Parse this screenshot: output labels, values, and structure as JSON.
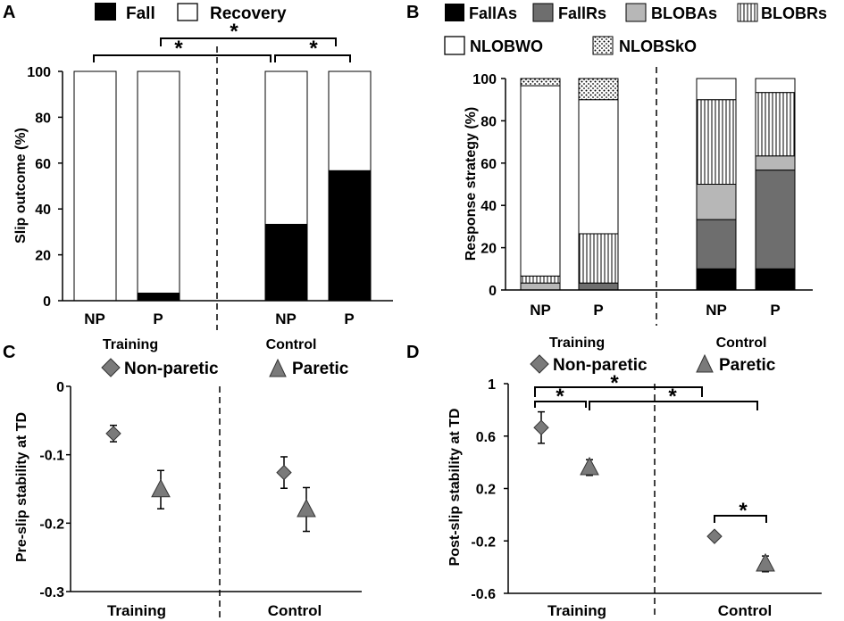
{
  "colors": {
    "fall": "#000000",
    "recovery": "#ffffff",
    "FallAs": "#000000",
    "FallRs": "#6e6e6e",
    "BLOBAs": "#b7b7b7",
    "BLOBRs": "vertical-lines",
    "NLOBWO": "#ffffff",
    "NLOBSkO": "dots",
    "marker": "#7a7a7a"
  },
  "chart_data": [
    {
      "panel": "A",
      "type": "bar",
      "stacked": true,
      "ylabel": "Slip outcome (%)",
      "ylim": [
        0,
        100
      ],
      "yticks": [
        "0",
        "20",
        "40",
        "60",
        "80",
        "100"
      ],
      "legend": [
        "Fall",
        "Recovery"
      ],
      "categories": [
        "NP",
        "P",
        "NP",
        "P"
      ],
      "groups": [
        "Training",
        "Control"
      ],
      "series": [
        {
          "name": "Fall",
          "values": [
            0,
            3.3,
            33.3,
            56.7
          ]
        },
        {
          "name": "Recovery",
          "values": [
            100,
            96.7,
            66.7,
            43.3
          ]
        }
      ],
      "annotations": [
        "*",
        "*",
        "*"
      ]
    },
    {
      "panel": "B",
      "type": "bar",
      "stacked": true,
      "ylabel": "Response strategy (%)",
      "ylim": [
        0,
        100
      ],
      "yticks": [
        "0",
        "20",
        "40",
        "60",
        "80",
        "100"
      ],
      "legend": [
        "FallAs",
        "FallRs",
        "BLOBAs",
        "BLOBRs",
        "NLOBWO",
        "NLOBSkO"
      ],
      "categories": [
        "NP",
        "P",
        "NP",
        "P"
      ],
      "series": [
        {
          "name": "FallAs",
          "values": [
            0,
            0,
            10,
            10
          ]
        },
        {
          "name": "FallRs",
          "values": [
            0,
            3.3,
            23.3,
            46.7
          ]
        },
        {
          "name": "BLOBAs",
          "values": [
            3.3,
            0,
            16.7,
            6.7
          ]
        },
        {
          "name": "BLOBRs",
          "values": [
            3.3,
            23.3,
            40,
            30
          ]
        },
        {
          "name": "NLOBWO",
          "values": [
            90,
            63.4,
            10,
            6.6
          ]
        },
        {
          "name": "NLOBSkO",
          "values": [
            3.4,
            10,
            0,
            0
          ]
        }
      ]
    },
    {
      "panel": "C",
      "type": "scatter",
      "ylabel": "Pre-slip stability at TD",
      "ylim": [
        -0.3,
        0
      ],
      "yticks": [
        "0",
        "-0.1",
        "-0.2",
        "-0.3"
      ],
      "legend": [
        "Non-paretic",
        "Paretic"
      ],
      "groups": [
        "Training",
        "Control"
      ],
      "series": [
        {
          "name": "Non-paretic",
          "values": [
            -0.069,
            -0.126
          ],
          "errors": [
            0.012,
            0.023
          ]
        },
        {
          "name": "Paretic",
          "values": [
            -0.151,
            -0.18
          ],
          "errors": [
            0.028,
            0.032
          ]
        }
      ]
    },
    {
      "panel": "D",
      "type": "scatter",
      "ylabel": "Post-slip stability at TD",
      "ylim": [
        -0.6,
        1
      ],
      "yticks": [
        "1",
        "0.6",
        "0.2",
        "-0.2",
        "-0.6"
      ],
      "legend": [
        "Non-paretic",
        "Paretic"
      ],
      "groups": [
        "Training",
        "Control"
      ],
      "series": [
        {
          "name": "Non-paretic",
          "values": [
            0.665,
            -0.165
          ],
          "errors": [
            0.12,
            0.0
          ]
        },
        {
          "name": "Paretic",
          "values": [
            0.36,
            -0.375
          ],
          "errors": [
            0.06,
            0.06
          ]
        }
      ],
      "annotations": [
        "*",
        "*",
        "*",
        "*"
      ]
    }
  ]
}
